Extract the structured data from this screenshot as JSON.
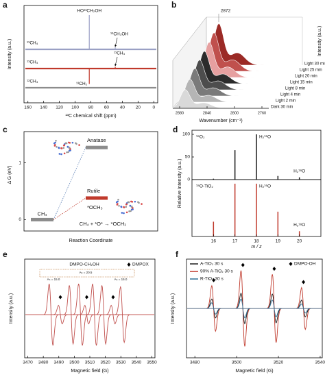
{
  "chart_data": [
    {
      "panel": "a",
      "type": "nmr",
      "xlabel": "¹³C chemical shift (ppm)",
      "ylabel": "Intensity (a.u.)",
      "xlim": [
        165,
        -5
      ],
      "xticks": [
        160,
        140,
        120,
        100,
        80,
        60,
        40,
        20,
        0
      ],
      "series": [
        {
          "name": "¹³CH₄",
          "color": "#9aa0c4",
          "peaks": [
            82,
            49
          ],
          "heights": [
            1,
            0.06
          ],
          "peak_labels": [
            "HO¹³CH₂OH",
            "¹³CH₃OH"
          ]
        },
        {
          "name": "¹³CH₄",
          "color": "#c0392b",
          "peaks": [
            82,
            49
          ],
          "heights": [
            -0.45,
            0.05
          ],
          "peak_labels": [
            "¹³CH₂",
            "¹³CH₃"
          ]
        },
        {
          "name": "¹²CH₄",
          "color": "#8c8c8c"
        }
      ]
    },
    {
      "panel": "b",
      "type": "waterfall",
      "xlabel": "Wavenumber (cm⁻¹)",
      "ylabel": "Intensity (a.u.)",
      "xlim": [
        2890,
        2750
      ],
      "xticks": [
        2880,
        2840,
        2800,
        2760
      ],
      "peak_position": 2872,
      "series": [
        {
          "name": "Light 30 min",
          "color": "#9b2a26",
          "value": 1.0
        },
        {
          "name": "Light 25 min",
          "color": "#c0504d",
          "value": 0.93
        },
        {
          "name": "Light 20 min",
          "color": "#e6a0a0",
          "value": 0.85
        },
        {
          "name": "Light 15 min",
          "color": "#2b2b2b",
          "value": 0.78
        },
        {
          "name": "Light 8 min",
          "color": "#4d4d4d",
          "value": 0.72
        },
        {
          "name": "Light 4 min",
          "color": "#7a7a7a",
          "value": 0.66
        },
        {
          "name": "Light 2 min",
          "color": "#b5b5b5",
          "value": 0.55
        },
        {
          "name": "Dark 30 min",
          "color": "#d9d9d9",
          "value": 0.45
        }
      ]
    },
    {
      "panel": "c",
      "type": "energy",
      "ylabel": "Δ G (eV)",
      "xlabel": "Reaction Coordinate",
      "ylim": [
        -0.2,
        1.55
      ],
      "yticks": [
        0,
        1
      ],
      "categories": [
        "CH₄",
        "Anatase",
        "Rutile"
      ],
      "values": [
        0,
        1.27,
        0.38
      ],
      "colors": [
        "#8c8c8c",
        "#8c8c8c",
        "#c0392b"
      ],
      "connector_colors": [
        "#5b7fb5",
        "#c0392b"
      ],
      "product_label": "*OCH₃",
      "reaction": "CH₄ + *O* → *OCH₃"
    },
    {
      "panel": "d",
      "type": "mass",
      "xlabel": "m / z",
      "ylabel": "Relative Intensity (a.u.)",
      "xlim": [
        15,
        21
      ],
      "xticks": [
        16,
        17,
        18,
        19,
        20
      ],
      "x": [
        16,
        17,
        18,
        19,
        20
      ],
      "subplots": [
        {
          "name": "¹⁸O₂",
          "color": "#1a1a1a",
          "values": [
            2,
            65,
            100,
            8,
            5
          ],
          "ylim": [
            0,
            100
          ],
          "yticks": [
            0,
            50,
            100
          ],
          "annotations": [
            "H₂¹⁶O",
            "H₂¹⁸O"
          ],
          "annotation_at": [
            18,
            20
          ]
        },
        {
          "name": "¹⁸O-TiO₂",
          "color": "#c0392b",
          "values": [
            28,
            100,
            100,
            47,
            10
          ],
          "ylim": [
            0,
            100
          ],
          "annotations": [
            "H₂¹⁶O",
            "H₂¹⁸O"
          ],
          "annotation_at": [
            18,
            20
          ]
        }
      ]
    },
    {
      "panel": "e",
      "type": "epr",
      "xlabel": "Magnetic field (G)",
      "ylabel": "Intensity (a.u.)",
      "xlim": [
        3468,
        3552
      ],
      "ylim": [
        -1.4,
        1.8
      ],
      "xticks": [
        3470,
        3480,
        3490,
        3500,
        3510,
        3520,
        3530,
        3540,
        3550
      ],
      "series": [
        {
          "name": "DMPO-CH₂OH",
          "color": "#c0504d",
          "lines": [
            3485,
            3498,
            3504,
            3513,
            3519,
            3531
          ],
          "amplitudes": [
            1,
            0.95,
            1,
            1,
            0.95,
            0.9
          ]
        },
        {
          "name": "DMPOX",
          "color": "#c0504d",
          "marker": "diamond",
          "lines": [
            3491,
            3508,
            3525
          ],
          "amplitudes": [
            0.3,
            0.3,
            0.3
          ]
        }
      ],
      "hyperfine_labels": [
        "Aₙ = 15.0",
        "Aₕ = 20.5",
        "Aₙ = 15.0"
      ]
    },
    {
      "panel": "f",
      "type": "epr",
      "xlabel": "Magnetic field (G)",
      "ylabel": "Intensity (a.u.)",
      "xlim": [
        3476,
        3541
      ],
      "ylim": [
        -1.3,
        1.3
      ],
      "xticks": [
        3480,
        3500,
        3520,
        3540
      ],
      "lines": [
        3489,
        3503,
        3518,
        3532
      ],
      "marker_name": "DMPO-OH",
      "legend": "upper left",
      "series": [
        {
          "name": "A-TiO₂ 30 s",
          "color": "#1a1a1a",
          "amplitudes": [
            0.25,
            0.4,
            0.38,
            0.22
          ]
        },
        {
          "name": "90% A-TiO₂ 30 s",
          "color": "#c0392b",
          "amplitudes": [
            0.6,
            1,
            0.9,
            0.55
          ]
        },
        {
          "name": "R-TiO₂ 30 s",
          "color": "#2e6f95",
          "amplitudes": [
            0.15,
            0.25,
            0.22,
            0.12
          ]
        }
      ]
    }
  ]
}
